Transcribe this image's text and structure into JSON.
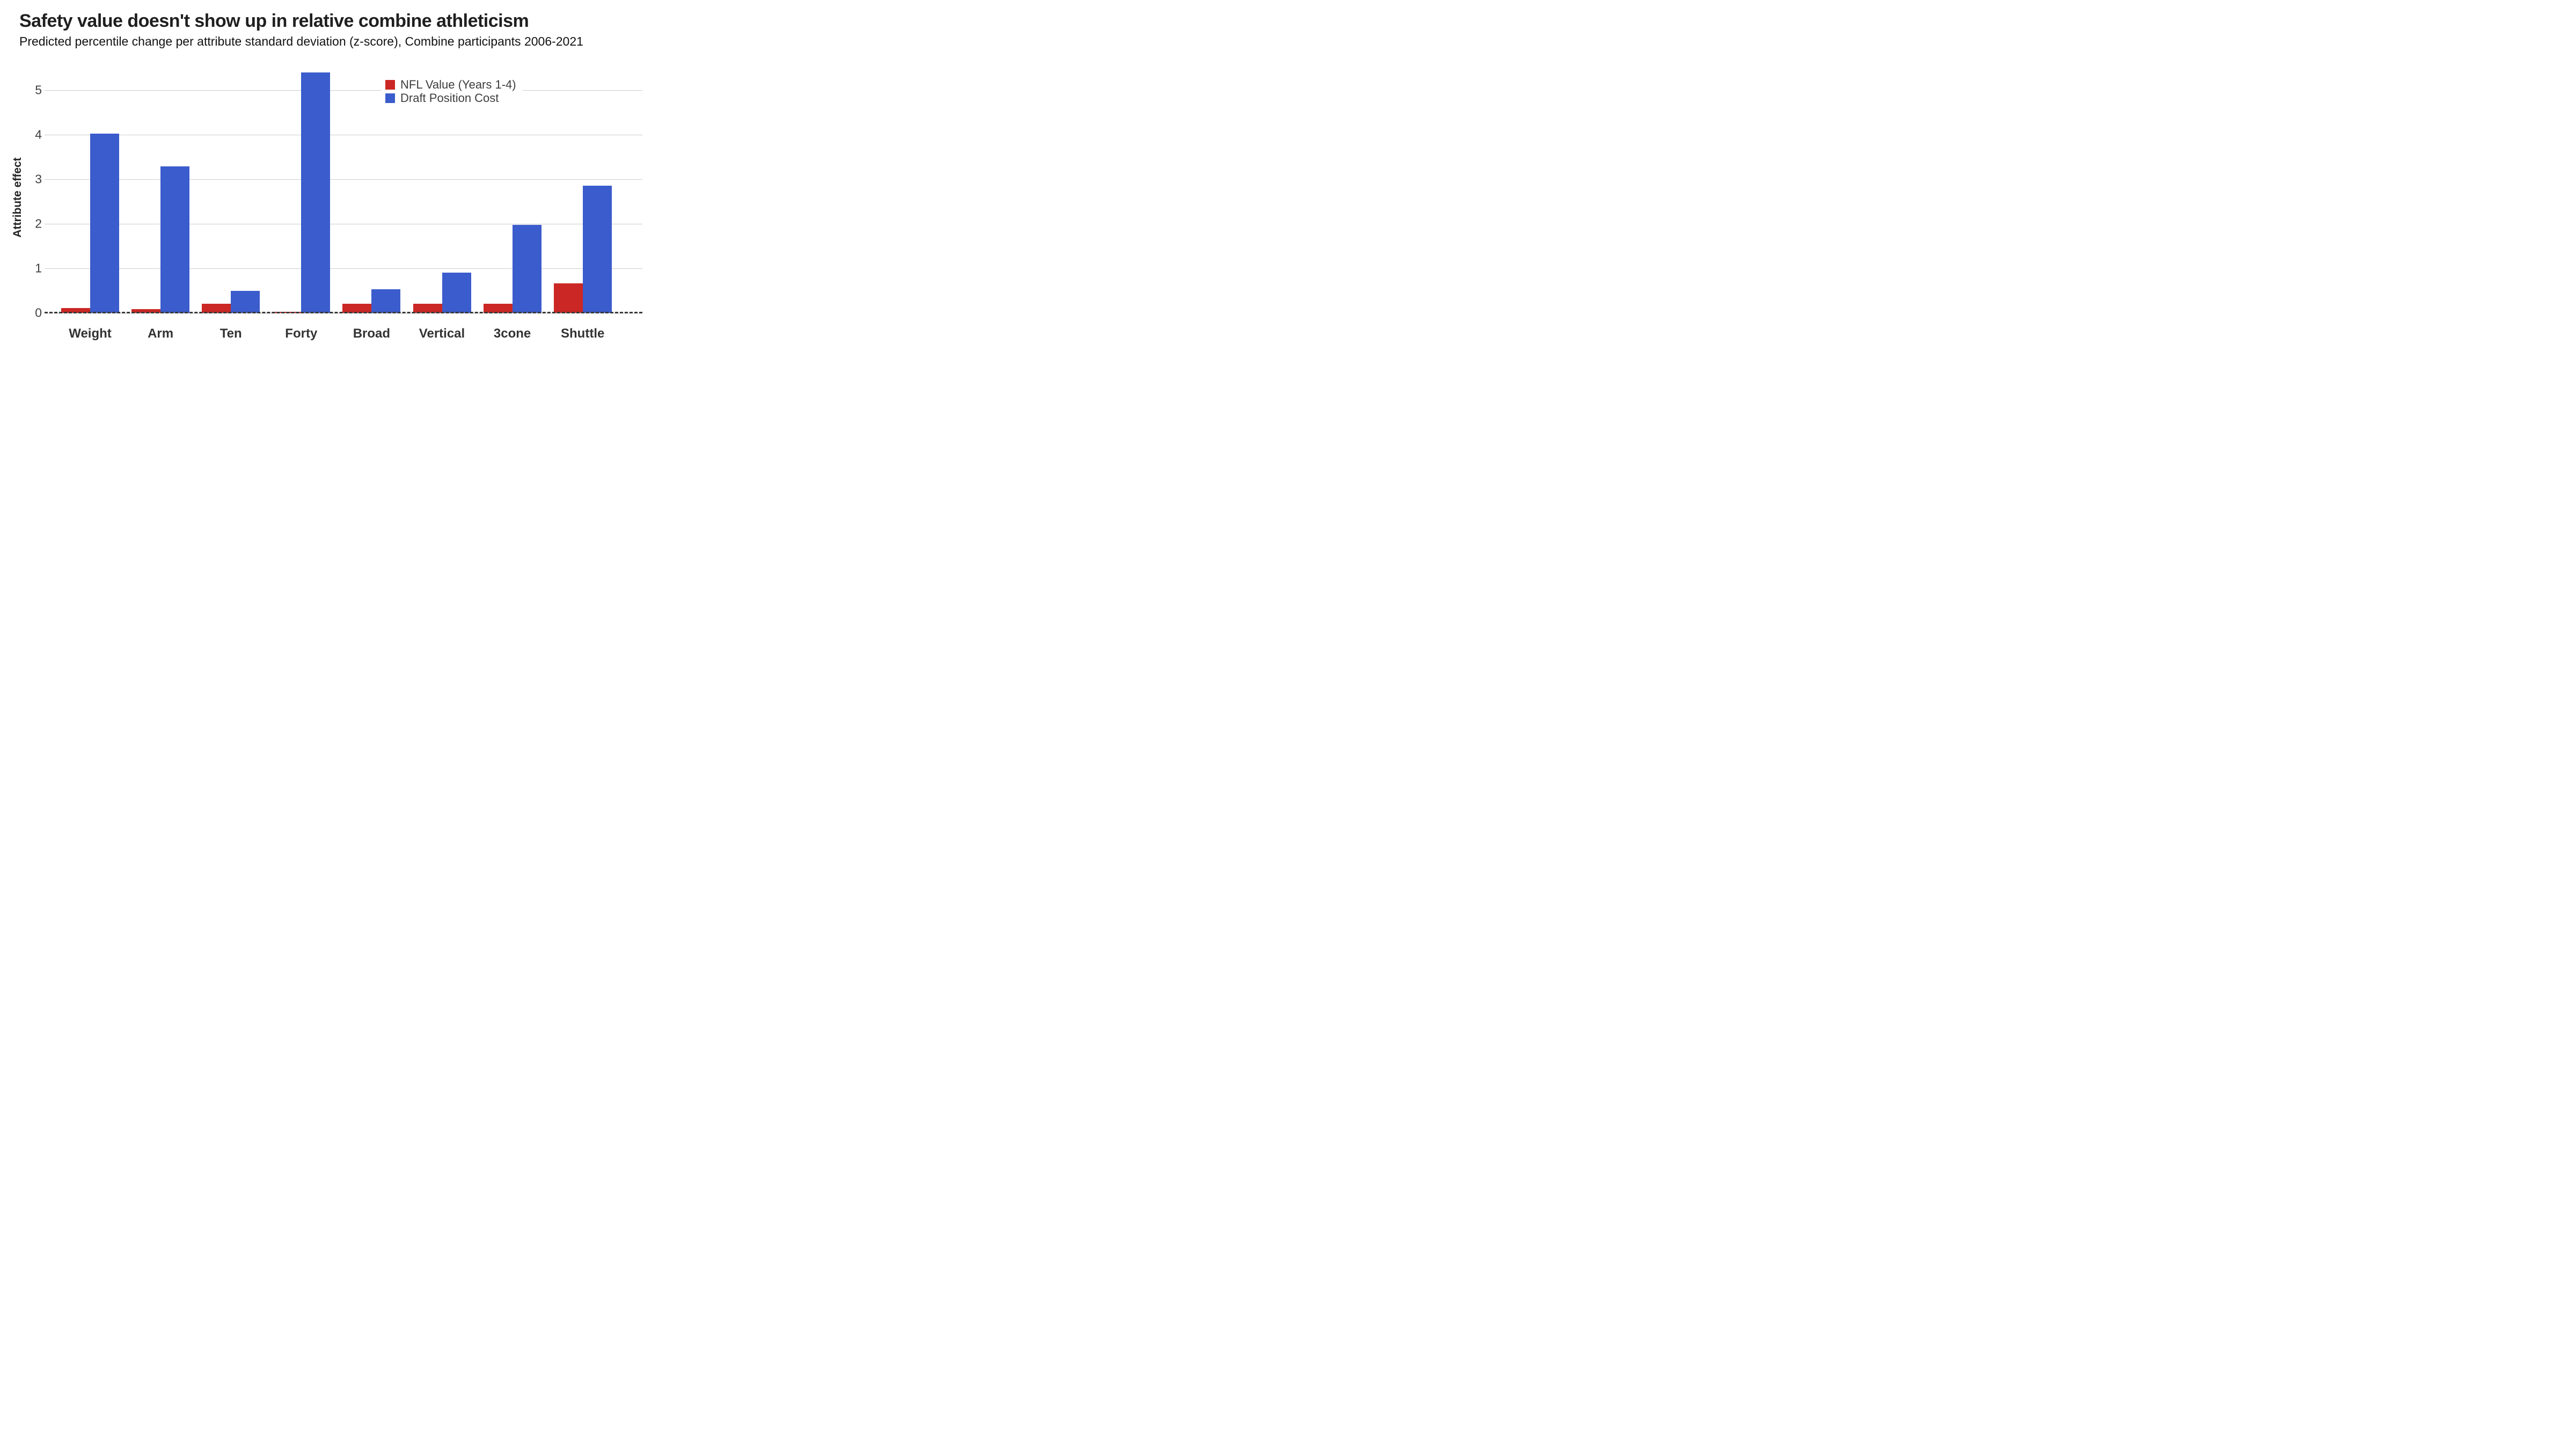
{
  "chart_data": {
    "type": "bar",
    "title": "Safety value doesn't show up in relative combine athleticism",
    "subtitle": "Predicted percentile change per attribute standard deviation (z-score), Combine participants 2006-2021",
    "ylabel": "Attribute effect",
    "xlabel": "",
    "categories": [
      "Weight",
      "Arm",
      "Ten",
      "Forty",
      "Broad",
      "Vertical",
      "3cone",
      "Shuttle"
    ],
    "series": [
      {
        "name": "NFL Value (Years 1-4)",
        "color": "#cb2724",
        "values": [
          0.11,
          0.09,
          0.2,
          0.03,
          0.2,
          0.2,
          0.2,
          0.66
        ]
      },
      {
        "name": "Draft Position Cost",
        "color": "#3b5ccc",
        "values": [
          4.02,
          3.29,
          0.5,
          5.4,
          0.53,
          0.9,
          1.98,
          2.86
        ]
      }
    ],
    "yticks": [
      0,
      1,
      2,
      3,
      4,
      5
    ],
    "ylim": [
      0,
      5.5
    ],
    "grid": true,
    "gridline_color": "#cccccc",
    "zero_line_style": "dashed",
    "legend_position": "top-right-inside"
  }
}
